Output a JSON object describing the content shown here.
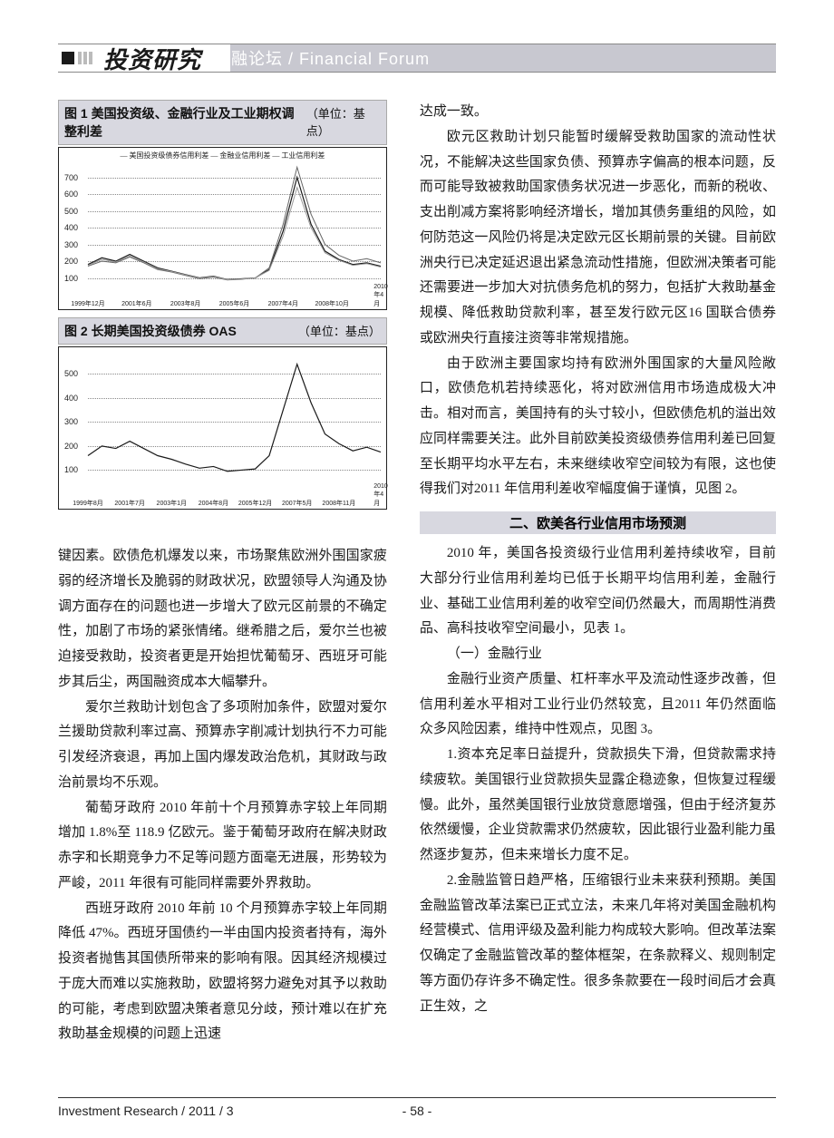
{
  "header": {
    "journal": "投资研究",
    "section": "金融论坛 / Financial  Forum"
  },
  "fig1": {
    "title": "图 1  美国投资级、金融行业及工业期权调整利差",
    "unit": "（单位：基点）",
    "type": "line",
    "legend": "— 美国投资级债券信用利差  — 金融业信用利差  — 工业信用利差",
    "yticks": [
      100,
      200,
      300,
      400,
      500,
      600,
      700
    ],
    "ylim": [
      0,
      800
    ],
    "xticks": [
      "1999年12月",
      "2001年6月",
      "2003年8月",
      "2005年6月",
      "2007年4月",
      "2008年10月",
      "2010年4月"
    ],
    "series": [
      [
        180,
        220,
        200,
        240,
        200,
        160,
        140,
        120,
        100,
        110,
        90,
        95,
        100,
        150,
        380,
        700,
        420,
        260,
        210,
        180,
        190,
        170
      ],
      [
        170,
        200,
        190,
        225,
        190,
        150,
        135,
        115,
        95,
        105,
        88,
        92,
        100,
        160,
        420,
        760,
        480,
        300,
        235,
        200,
        215,
        190
      ],
      [
        175,
        210,
        195,
        230,
        195,
        155,
        138,
        118,
        98,
        108,
        89,
        93,
        100,
        145,
        350,
        640,
        400,
        250,
        205,
        175,
        185,
        165
      ]
    ],
    "colors": [
      "#1a1a1a",
      "#666666",
      "#999999"
    ],
    "line_widths": [
      1.2,
      1.0,
      1.0
    ],
    "background_color": "#ffffff",
    "grid_color": "#888888"
  },
  "fig2": {
    "title": "图 2  长期美国投资级债券 OAS",
    "unit": "（单位：基点）",
    "type": "line",
    "yticks": [
      100,
      200,
      300,
      400,
      500
    ],
    "ylim": [
      0,
      580
    ],
    "xticks": [
      "1999年8月",
      "2001年7月",
      "2003年1月",
      "2004年8月",
      "2005年12月",
      "2007年5月",
      "2008年11月",
      "2010年4月"
    ],
    "series": [
      [
        160,
        200,
        190,
        220,
        190,
        160,
        145,
        125,
        108,
        115,
        95,
        100,
        105,
        160,
        350,
        540,
        380,
        250,
        210,
        180,
        195,
        175
      ]
    ],
    "colors": [
      "#1a1a1a"
    ],
    "line_widths": [
      1.2
    ],
    "background_color": "#ffffff",
    "grid_color": "#888888"
  },
  "left_text": {
    "p1": "键因素。欧债危机爆发以来，市场聚焦欧洲外围国家疲弱的经济增长及脆弱的财政状况，欧盟领导人沟通及协调方面存在的问题也进一步增大了欧元区前景的不确定性，加剧了市场的紧张情绪。继希腊之后，爱尔兰也被迫接受救助，投资者更是开始担忧葡萄牙、西班牙可能步其后尘，两国融资成本大幅攀升。",
    "p2": "爱尔兰救助计划包含了多项附加条件，欧盟对爱尔兰援助贷款利率过高、预算赤字削减计划执行不力可能引发经济衰退，再加上国内爆发政治危机，其财政与政治前景均不乐观。",
    "p3": "葡萄牙政府 2010 年前十个月预算赤字较上年同期增加 1.8%至 118.9 亿欧元。鉴于葡萄牙政府在解决财政赤字和长期竞争力不足等问题方面毫无进展，形势较为严峻，2011 年很有可能同样需要外界救助。",
    "p4": "西班牙政府 2010 年前 10 个月预算赤字较上年同期降低 47%。西班牙国债约一半由国内投资者持有，海外投资者抛售其国债所带来的影响有限。因其经济规模过于庞大而难以实施救助，欧盟将努力避免对其予以救助的可能，考虑到欧盟决策者意见分歧，预计难以在扩充救助基金规模的问题上迅速"
  },
  "right_text": {
    "p0": "达成一致。",
    "p1": "欧元区救助计划只能暂时缓解受救助国家的流动性状况，不能解决这些国家负债、预算赤字偏高的根本问题，反而可能导致被救助国家债务状况进一步恶化，而新的税收、支出削减方案将影响经济增长，增加其债务重组的风险，如何防范这一风险仍将是决定欧元区长期前景的关键。目前欧洲央行已决定延迟退出紧急流动性措施，但欧洲决策者可能还需要进一步加大对抗债务危机的努力，包括扩大救助基金规模、降低救助贷款利率，甚至发行欧元区16 国联合债券或欧洲央行直接注资等非常规措施。",
    "p2": "由于欧洲主要国家均持有欧洲外围国家的大量风险敞口，欧债危机若持续恶化，将对欧洲信用市场造成极大冲击。相对而言，美国持有的头寸较小，但欧债危机的溢出效应同样需要关注。此外目前欧美投资级债券信用利差已回复至长期平均水平左右，未来继续收窄空间较为有限，这也使得我们对2011 年信用利差收窄幅度偏于谨慎，见图 2。",
    "heading2": "二、欧美各行业信用市场预测",
    "p3": "2010 年，美国各投资级行业信用利差持续收窄，目前大部分行业信用利差均已低于长期平均信用利差，金融行业、基础工业信用利差的收窄空间仍然最大，而周期性消费品、高科技收窄空间最小，见表 1。",
    "p4": "（一）金融行业",
    "p5": "金融行业资产质量、杠杆率水平及流动性逐步改善，但信用利差水平相对工业行业仍然较宽，且2011 年仍然面临众多风险因素，维持中性观点，见图 3。",
    "p6": "1.资本充足率日益提升，贷款损失下滑，但贷款需求持续疲软。美国银行业贷款损失显露企稳迹象，但恢复过程缓慢。此外，虽然美国银行业放贷意愿增强，但由于经济复苏依然缓慢，企业贷款需求仍然疲软，因此银行业盈利能力虽然逐步复苏，但未来增长力度不足。",
    "p7": "2.金融监管日趋严格，压缩银行业未来获利预期。美国金融监管改革法案已正式立法，未来几年将对美国金融机构经营模式、信用评级及盈利能力构成较大影响。但改革法案仅确定了金融监管改革的整体框架，在条款释义、规则制定等方面仍存许多不确定性。很多条款要在一段时间后才会真正生效，之"
  },
  "footer": {
    "left": "Investment  Research / 2011 / 3",
    "page": "- 58 -"
  }
}
